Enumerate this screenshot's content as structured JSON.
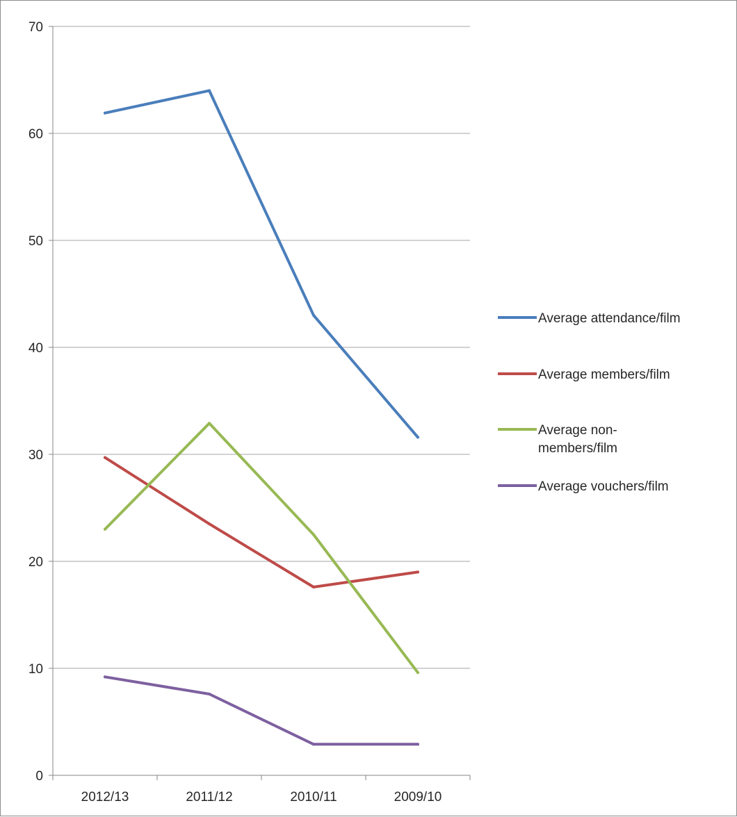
{
  "chart_data": {
    "type": "line",
    "categories": [
      "2012/13",
      "2011/12",
      "2010/11",
      "2009/10"
    ],
    "ylim": [
      0,
      70
    ],
    "yticks": [
      "0",
      "10",
      "20",
      "30",
      "40",
      "50",
      "60",
      "70"
    ],
    "grid": true,
    "legend_position": "right",
    "series": [
      {
        "name": "Average attendance/film",
        "name_lines": [
          "Average attendance/film"
        ],
        "color": "#4a7ebb",
        "values": [
          61.9,
          64,
          43,
          31.6
        ]
      },
      {
        "name": "Average members/film",
        "name_lines": [
          "Average members/film"
        ],
        "color": "#be4b48",
        "values": [
          29.7,
          23.5,
          17.6,
          19
        ]
      },
      {
        "name": "Average non-members/film",
        "name_lines": [
          "Average non-",
          "members/film"
        ],
        "color": "#98b954",
        "values": [
          23,
          32.9,
          22.5,
          9.6
        ]
      },
      {
        "name": "Average vouchers/film",
        "name_lines": [
          "Average vouchers/film"
        ],
        "color": "#7d60a0",
        "values": [
          9.2,
          7.6,
          2.9,
          2.9
        ]
      }
    ]
  }
}
